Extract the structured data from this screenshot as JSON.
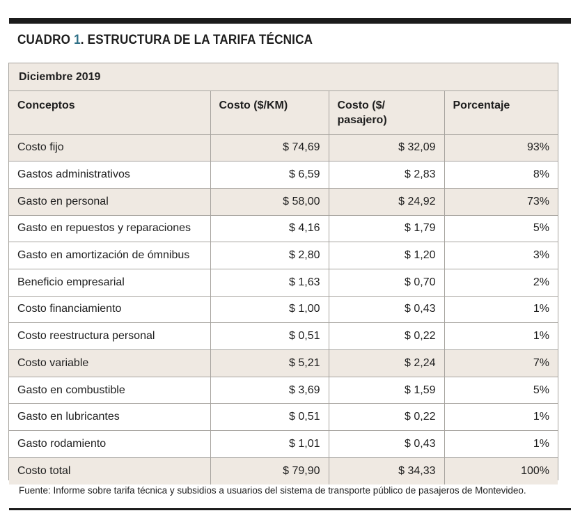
{
  "header": {
    "title_prefix": "CUADRO ",
    "title_number": "1",
    "title_text": ". ESTRUCTURA DE LA TARIFA TÉCNICA"
  },
  "table": {
    "period": "Diciembre 2019",
    "columns": [
      "Conceptos",
      "Costo ($/KM)",
      "Costo ($/ pasajero)",
      "Porcentaje"
    ],
    "rows": [
      {
        "concept": "Costo fijo",
        "km": "$ 74,69",
        "pax": "$ 32,09",
        "pct": "93%",
        "shaded": true
      },
      {
        "concept": "Gastos administrativos",
        "km": "$ 6,59",
        "pax": "$ 2,83",
        "pct": "8%",
        "shaded": false
      },
      {
        "concept": "Gasto en personal",
        "km": "$ 58,00",
        "pax": "$ 24,92",
        "pct": "73%",
        "shaded": true
      },
      {
        "concept": "Gasto en repuestos y reparaciones",
        "km": "$ 4,16",
        "pax": "$ 1,79",
        "pct": "5%",
        "shaded": false
      },
      {
        "concept": "Gasto en amortización de ómnibus",
        "km": "$ 2,80",
        "pax": "$ 1,20",
        "pct": "3%",
        "shaded": false
      },
      {
        "concept": "Beneficio empresarial",
        "km": "$ 1,63",
        "pax": "$ 0,70",
        "pct": "2%",
        "shaded": false
      },
      {
        "concept": "Costo financiamiento",
        "km": "$ 1,00",
        "pax": "$ 0,43",
        "pct": "1%",
        "shaded": false
      },
      {
        "concept": "Costo reestructura personal",
        "km": "$ 0,51",
        "pax": "$ 0,22",
        "pct": "1%",
        "shaded": false
      },
      {
        "concept": "Costo variable",
        "km": "$ 5,21",
        "pax": "$ 2,24",
        "pct": "7%",
        "shaded": true
      },
      {
        "concept": "Gasto en combustible",
        "km": "$ 3,69",
        "pax": "$ 1,59",
        "pct": "5%",
        "shaded": false
      },
      {
        "concept": "Gasto en lubricantes",
        "km": "$ 0,51",
        "pax": "$ 0,22",
        "pct": "1%",
        "shaded": false
      },
      {
        "concept": "Gasto rodamiento",
        "km": "$ 1,01",
        "pax": "$ 0,43",
        "pct": "1%",
        "shaded": false
      },
      {
        "concept": "Costo total",
        "km": "$ 79,90",
        "pax": "$ 34,33",
        "pct": "100%",
        "shaded": true
      }
    ]
  },
  "footer": {
    "source": "Fuente: Informe sobre tarifa técnica y subsidios a usuarios del sistema de transporte público de pasajeros de Montevideo."
  },
  "colors": {
    "accent": "#2d6f86",
    "shade": "#efe9e2",
    "rule": "#1c1c1c"
  }
}
